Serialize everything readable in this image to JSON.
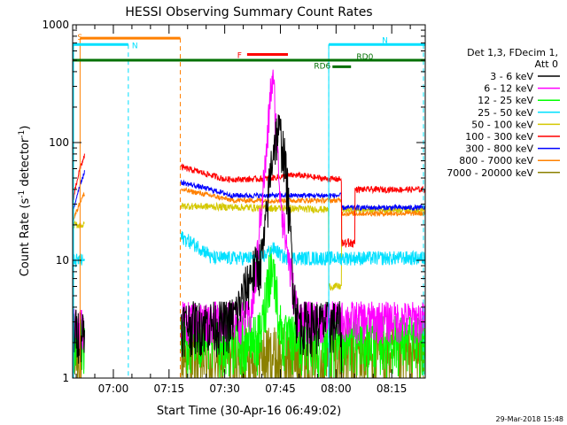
{
  "chart_data": {
    "type": "line",
    "title": "HESSI Observing Summary Count Rates",
    "xlabel": "Start Time (30-Apr-16 06:49:02)",
    "ylabel_parts": [
      "Count Rate (s",
      "-1",
      " detector",
      "-1",
      ")"
    ],
    "y_scale": "log",
    "ylim": [
      1,
      1000
    ],
    "xlim_minutes": [
      0,
      95
    ],
    "x_ticks": [
      {
        "label": "07:00",
        "t": 10.97
      },
      {
        "label": "07:15",
        "t": 25.97
      },
      {
        "label": "07:30",
        "t": 40.97
      },
      {
        "label": "07:45",
        "t": 55.97
      },
      {
        "label": "08:00",
        "t": 70.97
      },
      {
        "label": "08:15",
        "t": 85.97
      }
    ],
    "y_ticks": [
      {
        "label": "1",
        "v": 1
      },
      {
        "label": "10",
        "v": 10
      },
      {
        "label": "100",
        "v": 100
      },
      {
        "label": "1000",
        "v": 1000
      }
    ],
    "legend": {
      "header": [
        "Det 1,3, FDecim 1,",
        "Att 0"
      ],
      "placement": "right"
    },
    "series": [
      {
        "name": "3 - 6 keV",
        "color": "#000000"
      },
      {
        "name": "6 - 12 keV",
        "color": "#ff00ff"
      },
      {
        "name": "12 - 25 keV",
        "color": "#00ff00"
      },
      {
        "name": "25 - 50 keV",
        "color": "#00e0ff"
      },
      {
        "name": "50 - 100 keV",
        "color": "#d4c800"
      },
      {
        "name": "100 - 300 keV",
        "color": "#ff0000"
      },
      {
        "name": "300 - 800 keV",
        "color": "#0000ff"
      },
      {
        "name": "800 - 7000 keV",
        "color": "#ff8000"
      },
      {
        "name": "7000 - 20000 keV",
        "color": "#8b8000"
      }
    ],
    "intervals": [
      {
        "label": "S",
        "color": "#ff8000",
        "t0": 2,
        "t1": 29,
        "y": 770
      },
      {
        "label": "N",
        "color": "#00e0ff",
        "t0": 0,
        "t1": 15,
        "y": 680
      },
      {
        "label": "N",
        "color": "#00e0ff",
        "t0": 69,
        "t1": 95,
        "y": 680
      },
      {
        "label": "F",
        "color": "#ff0000",
        "t0": 47,
        "t1": 58,
        "y": 560
      },
      {
        "label": "",
        "color": "#007000",
        "t0": 0,
        "t1": 95,
        "y": 500
      },
      {
        "label": "RD0",
        "color": "#007000",
        "t0": 76,
        "t1": 81,
        "y": 500
      },
      {
        "label": "RD6",
        "color": "#007000",
        "t0": 70,
        "t1": 75,
        "y": 440
      }
    ],
    "vlines_orange_dashed": [
      2,
      29
    ],
    "vlines_cyan_dashed": [
      15,
      69,
      95
    ],
    "vlines_cyan_solid": [
      0,
      69
    ]
  },
  "footer_date": "29-Mar-2018 15:48"
}
